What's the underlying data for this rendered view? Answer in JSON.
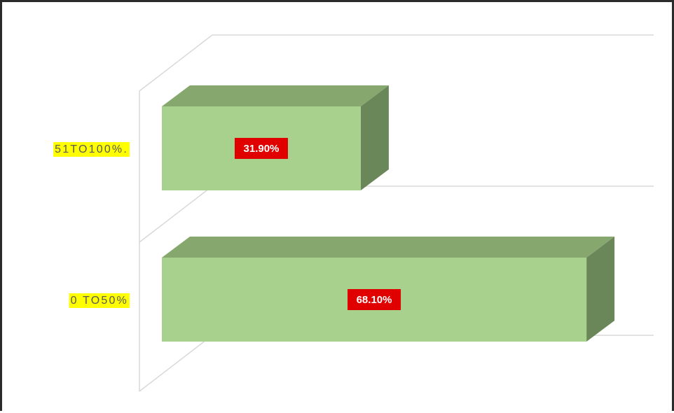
{
  "chart_data": {
    "type": "bar",
    "orientation": "horizontal",
    "style": "3d-clustered",
    "categories": [
      "0 TO50%",
      "51TO100%."
    ],
    "values": [
      68.1,
      31.9
    ],
    "data_labels": [
      "68.10%",
      "31.90%"
    ],
    "xlim": [
      0,
      80
    ],
    "grid": true,
    "legend": "none",
    "colors": {
      "bar_front": "#A9D18E",
      "bar_top": "#86A86E",
      "bar_side": "#6A8759",
      "label_bg": "#E00000",
      "category_highlight": "#FFFF00",
      "category_text": "#595959",
      "grid": "#D9D9D9"
    }
  }
}
